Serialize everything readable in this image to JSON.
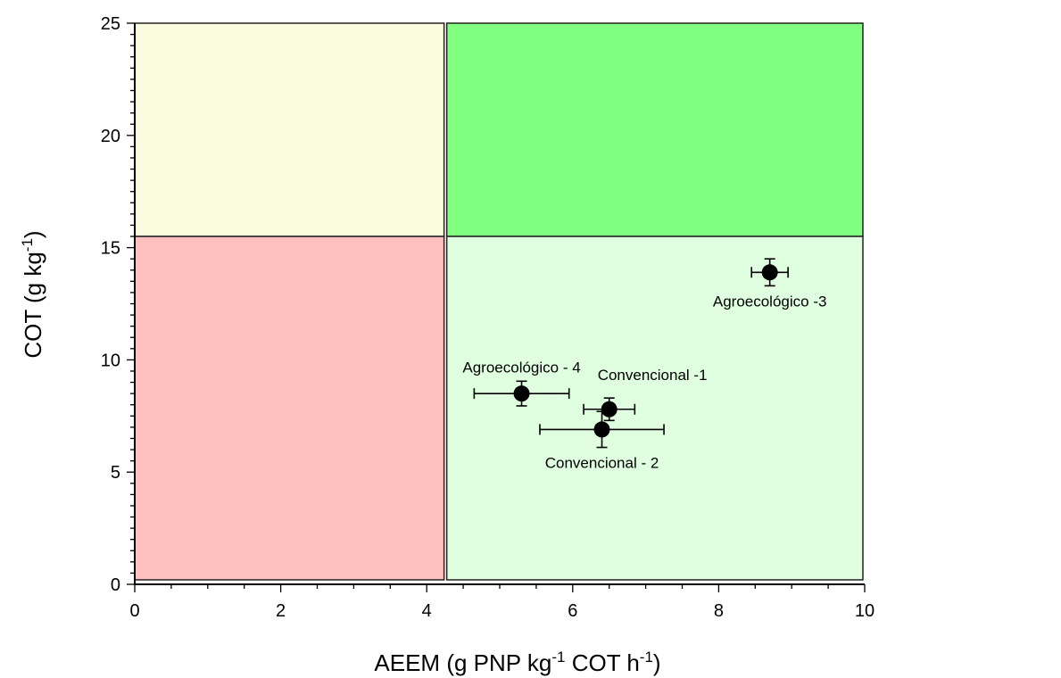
{
  "chart_data": {
    "type": "scatter",
    "xlabel": {
      "base": "AEEM (g PNP kg",
      "sup1": "-1",
      "mid": " COT h",
      "sup2": "-1",
      "end": ")"
    },
    "ylabel": {
      "base": "COT (g kg",
      "sup": "-1",
      "end": ")"
    },
    "xlim": [
      0,
      10
    ],
    "ylim": [
      0,
      25
    ],
    "xticks": [
      "0",
      "2",
      "4",
      "6",
      "8",
      "10"
    ],
    "yticks": [
      "0",
      "5",
      "10",
      "15",
      "20",
      "25"
    ],
    "quadrants": [
      {
        "name": "low-aeem-high-cot",
        "x": [
          0,
          4.25
        ],
        "y": [
          15.5,
          25
        ],
        "color": "#fbfbdf"
      },
      {
        "name": "high-aeem-high-cot",
        "x": [
          4.25,
          10
        ],
        "y": [
          15.5,
          25
        ],
        "color": "#80ff80"
      },
      {
        "name": "low-aeem-low-cot",
        "x": [
          0,
          4.25
        ],
        "y": [
          0.2,
          15.5
        ],
        "color": "#febfbf"
      },
      {
        "name": "high-aeem-low-cot",
        "x": [
          4.25,
          10
        ],
        "y": [
          0.2,
          15.5
        ],
        "color": "#e0ffe0"
      }
    ],
    "points": [
      {
        "label": "Agroecológico -3",
        "x": 8.7,
        "y": 13.9,
        "xerr": 0.25,
        "yerr": 0.6,
        "label_pos": "below"
      },
      {
        "label": "Agroecológico - 4",
        "x": 5.3,
        "y": 8.5,
        "xerr": 0.65,
        "yerr": 0.55,
        "label_pos": "above"
      },
      {
        "label": "Convencional -1",
        "x": 6.5,
        "y": 7.8,
        "xerr": 0.35,
        "yerr": 0.5,
        "label_pos": "above-right"
      },
      {
        "label": "Convencional - 2",
        "x": 6.4,
        "y": 6.9,
        "xerr": 0.85,
        "yerr": 0.8,
        "label_pos": "below"
      }
    ]
  }
}
